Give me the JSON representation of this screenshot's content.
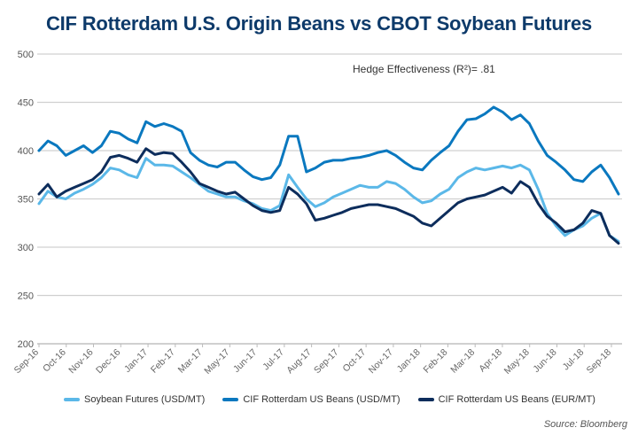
{
  "chart_data": {
    "type": "line",
    "title": "CIF Rotterdam U.S. Origin Beans vs CBOT Soybean Futures",
    "annotation": "Hedge Effectiveness (R²)= .81",
    "source": "Source: Bloomberg",
    "xlabel": "",
    "ylabel": "",
    "ylim": [
      200,
      500
    ],
    "yticks": [
      200,
      250,
      300,
      350,
      400,
      450,
      500
    ],
    "grid": true,
    "legend_placement": "bottom",
    "x_tick_labels": [
      "Sep-16",
      "Oct-16",
      "Nov-16",
      "Dec-16",
      "Jan-17",
      "Feb-17",
      "Mar-17",
      "May-17",
      "Jun-17",
      "Jul-17",
      "Aug-17",
      "Sep-17",
      "Oct-17",
      "Nov-17",
      "Jan-18",
      "Feb-18",
      "Mar-18",
      "Apr-18",
      "May-18",
      "Jun-18",
      "Jul-18",
      "Sep-18"
    ],
    "series": [
      {
        "name": "Soybean Futures (USD/MT)",
        "color": "#5bb8e8",
        "values": [
          345,
          358,
          352,
          350,
          356,
          360,
          365,
          372,
          382,
          380,
          375,
          372,
          392,
          385,
          385,
          384,
          378,
          372,
          365,
          358,
          355,
          352,
          352,
          348,
          345,
          340,
          338,
          343,
          375,
          362,
          350,
          342,
          346,
          352,
          356,
          360,
          364,
          362,
          362,
          368,
          366,
          360,
          352,
          346,
          348,
          355,
          360,
          372,
          378,
          382,
          380,
          382,
          384,
          382,
          385,
          380,
          360,
          335,
          322,
          312,
          318,
          322,
          330,
          335,
          312,
          306
        ]
      },
      {
        "name": "CIF Rotterdam US Beans (USD/MT)",
        "color": "#0a78bf",
        "values": [
          400,
          410,
          405,
          395,
          400,
          405,
          398,
          405,
          420,
          418,
          412,
          408,
          430,
          425,
          428,
          425,
          420,
          398,
          390,
          385,
          383,
          388,
          388,
          380,
          373,
          370,
          372,
          385,
          415,
          415,
          378,
          382,
          388,
          390,
          390,
          392,
          393,
          395,
          398,
          400,
          395,
          388,
          382,
          380,
          390,
          398,
          405,
          420,
          432,
          433,
          438,
          445,
          440,
          432,
          437,
          428,
          410,
          395,
          388,
          380,
          370,
          368,
          378,
          385,
          372,
          355
        ]
      },
      {
        "name": "CIF Rotterdam US Beans (EUR/MT)",
        "color": "#0d2d5c",
        "values": [
          355,
          365,
          352,
          358,
          362,
          366,
          370,
          378,
          393,
          395,
          392,
          388,
          402,
          396,
          398,
          397,
          388,
          378,
          366,
          362,
          358,
          355,
          357,
          350,
          343,
          338,
          336,
          338,
          362,
          355,
          345,
          328,
          330,
          333,
          336,
          340,
          342,
          344,
          344,
          342,
          340,
          336,
          332,
          325,
          322,
          330,
          338,
          346,
          350,
          352,
          354,
          358,
          362,
          356,
          368,
          362,
          345,
          332,
          325,
          316,
          318,
          325,
          338,
          335,
          312,
          304
        ]
      }
    ]
  }
}
